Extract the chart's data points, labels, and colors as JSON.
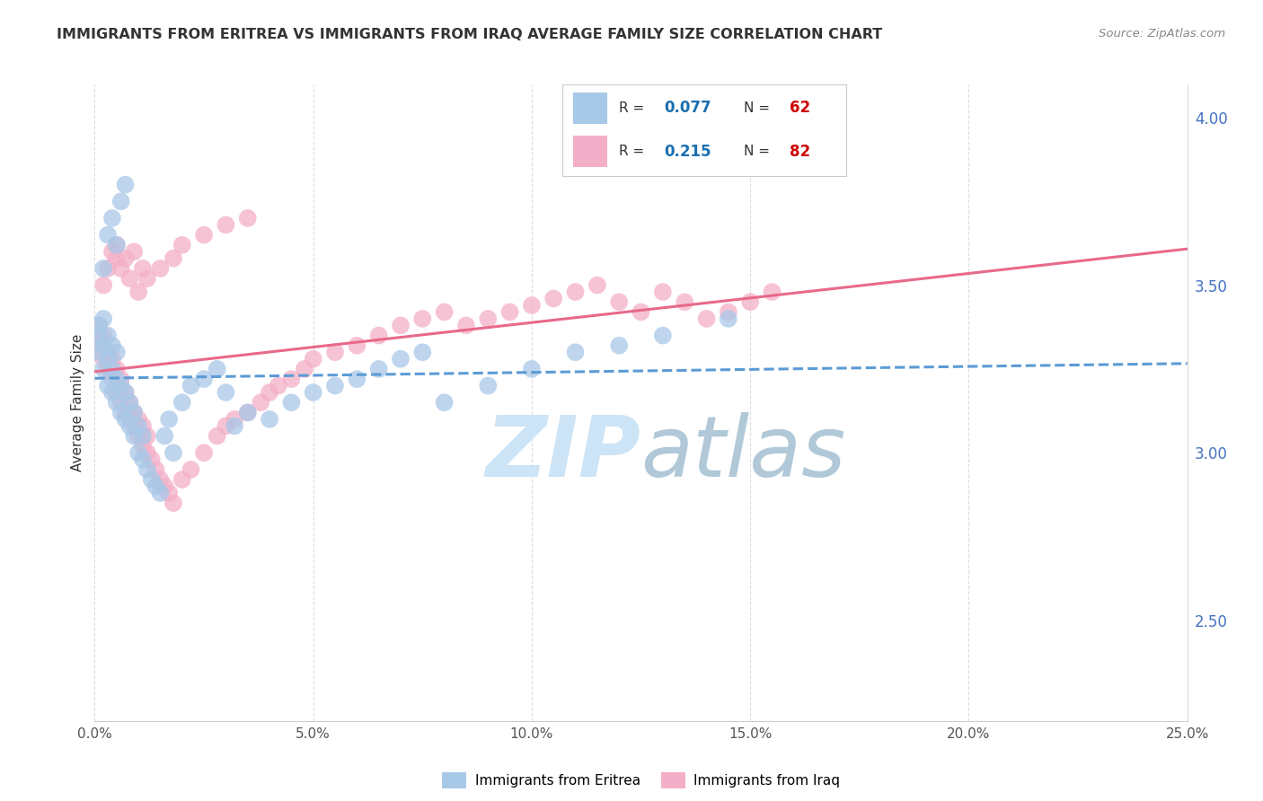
{
  "title": "IMMIGRANTS FROM ERITREA VS IMMIGRANTS FROM IRAQ AVERAGE FAMILY SIZE CORRELATION CHART",
  "source": "Source: ZipAtlas.com",
  "ylabel": "Average Family Size",
  "xlim": [
    0.0,
    0.25
  ],
  "ylim": [
    2.2,
    4.1
  ],
  "right_yticks": [
    2.5,
    3.0,
    3.5,
    4.0
  ],
  "xtick_labels": [
    "0.0%",
    "5.0%",
    "10.0%",
    "15.0%",
    "20.0%",
    "25.0%"
  ],
  "xtick_values": [
    0.0,
    0.05,
    0.1,
    0.15,
    0.2,
    0.25
  ],
  "eritrea_color": "#a8c8e8",
  "iraq_color": "#f4afc8",
  "eritrea_line_color": "#5b9bd5",
  "iraq_line_color": "#e8698a",
  "legend_R_color": "#1a6faf",
  "legend_N_color": "#cc0000",
  "background_color": "#ffffff",
  "grid_color": "#dddddd",
  "watermark_color": "#cce4f5",
  "eritrea_x": [
    0.001,
    0.001,
    0.001,
    0.002,
    0.002,
    0.002,
    0.003,
    0.003,
    0.003,
    0.004,
    0.004,
    0.004,
    0.005,
    0.005,
    0.005,
    0.006,
    0.006,
    0.007,
    0.007,
    0.008,
    0.008,
    0.009,
    0.009,
    0.01,
    0.01,
    0.011,
    0.011,
    0.012,
    0.013,
    0.014,
    0.015,
    0.016,
    0.017,
    0.018,
    0.02,
    0.022,
    0.025,
    0.028,
    0.03,
    0.032,
    0.035,
    0.04,
    0.045,
    0.05,
    0.055,
    0.06,
    0.065,
    0.07,
    0.075,
    0.08,
    0.09,
    0.1,
    0.11,
    0.12,
    0.13,
    0.145,
    0.002,
    0.003,
    0.004,
    0.005,
    0.006,
    0.007
  ],
  "eritrea_y": [
    3.3,
    3.35,
    3.38,
    3.25,
    3.32,
    3.4,
    3.2,
    3.28,
    3.35,
    3.18,
    3.25,
    3.32,
    3.15,
    3.22,
    3.3,
    3.12,
    3.2,
    3.1,
    3.18,
    3.08,
    3.15,
    3.05,
    3.12,
    3.0,
    3.08,
    2.98,
    3.05,
    2.95,
    2.92,
    2.9,
    2.88,
    3.05,
    3.1,
    3.0,
    3.15,
    3.2,
    3.22,
    3.25,
    3.18,
    3.08,
    3.12,
    3.1,
    3.15,
    3.18,
    3.2,
    3.22,
    3.25,
    3.28,
    3.3,
    3.15,
    3.2,
    3.25,
    3.3,
    3.32,
    3.35,
    3.4,
    3.55,
    3.65,
    3.7,
    3.62,
    3.75,
    3.8
  ],
  "iraq_x": [
    0.001,
    0.001,
    0.002,
    0.002,
    0.003,
    0.003,
    0.004,
    0.004,
    0.005,
    0.005,
    0.006,
    0.006,
    0.007,
    0.007,
    0.008,
    0.008,
    0.009,
    0.009,
    0.01,
    0.01,
    0.011,
    0.011,
    0.012,
    0.012,
    0.013,
    0.014,
    0.015,
    0.016,
    0.017,
    0.018,
    0.02,
    0.022,
    0.025,
    0.028,
    0.03,
    0.032,
    0.035,
    0.038,
    0.04,
    0.042,
    0.045,
    0.048,
    0.05,
    0.055,
    0.06,
    0.065,
    0.07,
    0.075,
    0.08,
    0.085,
    0.09,
    0.095,
    0.1,
    0.105,
    0.11,
    0.115,
    0.12,
    0.125,
    0.13,
    0.135,
    0.14,
    0.145,
    0.15,
    0.155,
    0.002,
    0.003,
    0.004,
    0.005,
    0.006,
    0.008,
    0.01,
    0.012,
    0.015,
    0.018,
    0.02,
    0.025,
    0.03,
    0.035,
    0.005,
    0.007,
    0.009,
    0.011
  ],
  "iraq_y": [
    3.32,
    3.38,
    3.28,
    3.35,
    3.25,
    3.3,
    3.22,
    3.28,
    3.18,
    3.25,
    3.15,
    3.22,
    3.12,
    3.18,
    3.1,
    3.15,
    3.08,
    3.12,
    3.05,
    3.1,
    3.02,
    3.08,
    3.0,
    3.05,
    2.98,
    2.95,
    2.92,
    2.9,
    2.88,
    2.85,
    2.92,
    2.95,
    3.0,
    3.05,
    3.08,
    3.1,
    3.12,
    3.15,
    3.18,
    3.2,
    3.22,
    3.25,
    3.28,
    3.3,
    3.32,
    3.35,
    3.38,
    3.4,
    3.42,
    3.38,
    3.4,
    3.42,
    3.44,
    3.46,
    3.48,
    3.5,
    3.45,
    3.42,
    3.48,
    3.45,
    3.4,
    3.42,
    3.45,
    3.48,
    3.5,
    3.55,
    3.6,
    3.58,
    3.55,
    3.52,
    3.48,
    3.52,
    3.55,
    3.58,
    3.62,
    3.65,
    3.68,
    3.7,
    3.62,
    3.58,
    3.6,
    3.55
  ]
}
